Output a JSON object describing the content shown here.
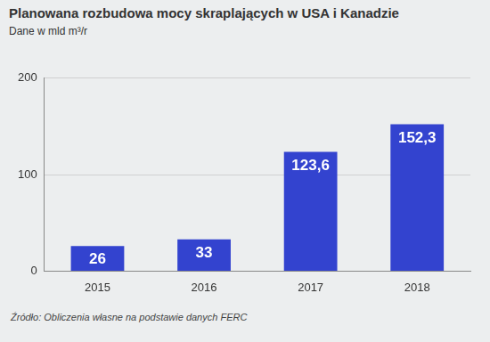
{
  "chart_data": {
    "type": "bar",
    "title": "Planowana rozbudowa mocy skraplających w USA i Kanadzie",
    "subtitle": "Dane w mld m³/r",
    "source": "Źródło: Obliczenia własne na podstawie danych FERC",
    "categories": [
      "2015",
      "2016",
      "2017",
      "2018"
    ],
    "values": [
      26,
      33,
      123.6,
      152.3
    ],
    "value_labels": [
      "26",
      "33",
      "123,6",
      "152,3"
    ],
    "color": "#3343cf",
    "ylim": [
      0,
      200
    ],
    "yticks": [
      0,
      100,
      200
    ],
    "grid": true,
    "data_labels": true
  }
}
